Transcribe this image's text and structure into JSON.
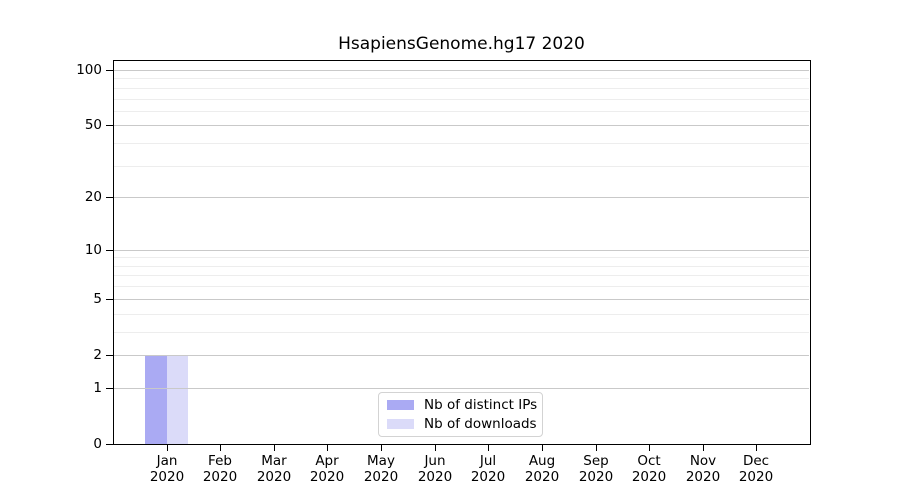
{
  "title": "HsapiensGenome.hg17 2020",
  "chart_data": {
    "type": "bar",
    "title": "HsapiensGenome.hg17 2020",
    "scale": "log1p",
    "grid": true,
    "legend_position": "bottom-center",
    "x_categories": [
      {
        "month": "Jan",
        "year": "2020"
      },
      {
        "month": "Feb",
        "year": "2020"
      },
      {
        "month": "Mar",
        "year": "2020"
      },
      {
        "month": "Apr",
        "year": "2020"
      },
      {
        "month": "May",
        "year": "2020"
      },
      {
        "month": "Jun",
        "year": "2020"
      },
      {
        "month": "Jul",
        "year": "2020"
      },
      {
        "month": "Aug",
        "year": "2020"
      },
      {
        "month": "Sep",
        "year": "2020"
      },
      {
        "month": "Oct",
        "year": "2020"
      },
      {
        "month": "Nov",
        "year": "2020"
      },
      {
        "month": "Dec",
        "year": "2020"
      }
    ],
    "series": [
      {
        "name": "Nb of distinct IPs",
        "color": "#aaaaf3",
        "values": [
          2,
          0,
          0,
          0,
          0,
          0,
          0,
          0,
          0,
          0,
          0,
          0
        ]
      },
      {
        "name": "Nb of downloads",
        "color": "#dbdbf9",
        "values": [
          2,
          0,
          0,
          0,
          0,
          0,
          0,
          0,
          0,
          0,
          0,
          0
        ]
      }
    ],
    "y_axis": {
      "tick_values": [
        0,
        1,
        2,
        5,
        10,
        20,
        50,
        100
      ],
      "major_gridlines": [
        1,
        2,
        5,
        10,
        20,
        50,
        100
      ],
      "minor_gridlines": [
        3,
        4,
        6,
        7,
        8,
        9,
        30,
        40,
        60,
        70,
        80,
        90
      ],
      "ylim": [
        0,
        113
      ]
    }
  },
  "colors": {
    "background": "#ffffff",
    "axis": "#000000",
    "text": "#000000",
    "grid_major": "#c9c9c9",
    "grid_minor": "#ededed",
    "legend_border": "#d3d3d3"
  }
}
